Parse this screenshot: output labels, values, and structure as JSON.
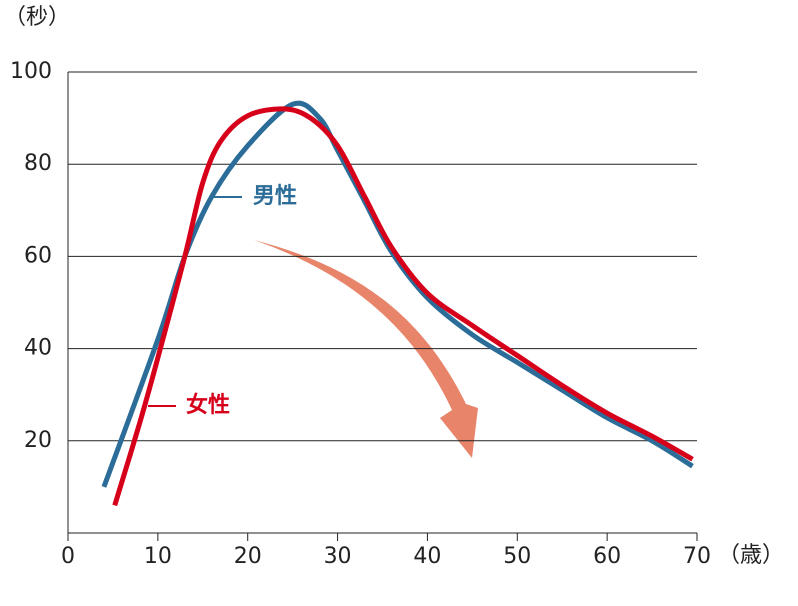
{
  "chart_data": {
    "type": "line",
    "y_label": "（秒）",
    "x_label": "（歳）",
    "xlim": [
      0,
      70
    ],
    "xticks": [
      0,
      10,
      20,
      30,
      40,
      50,
      60,
      70
    ],
    "ylim": [
      0,
      100
    ],
    "yticks": [
      20,
      40,
      60,
      80,
      100
    ],
    "grid": true,
    "series": [
      {
        "name": "男性",
        "color": "#2b6d98",
        "x": [
          4,
          10,
          13,
          16,
          20,
          25,
          28,
          30,
          33,
          36,
          40,
          45,
          50,
          55,
          60,
          65,
          69.5
        ],
        "values": [
          10,
          42,
          60,
          73,
          84,
          93,
          90,
          83,
          72,
          61,
          51,
          43,
          37,
          31,
          25,
          20,
          14.5
        ]
      },
      {
        "name": "女性",
        "color": "#d7001b",
        "x": [
          5.2,
          8,
          10,
          13,
          15,
          17,
          20,
          24,
          27,
          30,
          33,
          36,
          40,
          45,
          50,
          55,
          60,
          65,
          69.5
        ],
        "values": [
          6,
          24,
          38,
          60,
          76,
          85,
          90.5,
          92,
          90,
          84,
          73,
          62,
          52,
          45,
          38.5,
          32,
          26,
          21,
          16
        ]
      }
    ]
  }
}
